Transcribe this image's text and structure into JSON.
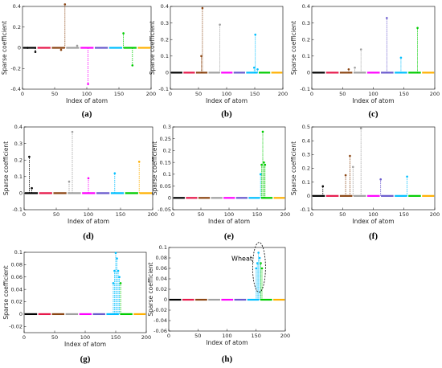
{
  "figure": {
    "panels": [
      {
        "caption": "(a)",
        "xlabel": "Index of atom",
        "ylabel": "Sparse coefficient",
        "xticks": [
          "0",
          "50",
          "100",
          "150",
          "200"
        ],
        "yticks": [
          "-0.4",
          "-0.2",
          "0",
          "0.2",
          "0.4"
        ],
        "xlim": [
          0,
          200
        ],
        "ylim": [
          -0.4,
          0.4
        ]
      },
      {
        "caption": "(b)",
        "xlabel": "Index of atom",
        "ylabel": "Sparse coefficient",
        "xticks": [
          "0",
          "50",
          "100",
          "150",
          "200"
        ],
        "yticks": [
          "-0.1",
          "0",
          "0.1",
          "0.2",
          "0.3",
          "0.4"
        ],
        "xlim": [
          0,
          200
        ],
        "ylim": [
          -0.1,
          0.4
        ]
      },
      {
        "caption": "(c)",
        "xlabel": "Index of atom",
        "ylabel": "Sparse coefficient",
        "xticks": [
          "0",
          "50",
          "100",
          "150",
          "200"
        ],
        "yticks": [
          "-0.1",
          "0",
          "0.1",
          "0.2",
          "0.3",
          "0.4"
        ],
        "xlim": [
          0,
          200
        ],
        "ylim": [
          -0.1,
          0.4
        ]
      },
      {
        "caption": "(d)",
        "xlabel": "Index of atom",
        "ylabel": "Sparse coefficient",
        "xticks": [
          "0",
          "50",
          "100",
          "150",
          "200"
        ],
        "yticks": [
          "-0.1",
          "0",
          "0.1",
          "0.2",
          "0.3",
          "0.4"
        ],
        "xlim": [
          0,
          200
        ],
        "ylim": [
          -0.1,
          0.4
        ]
      },
      {
        "caption": "(e)",
        "xlabel": "Index of atom",
        "ylabel": "Sparse coefficient",
        "xticks": [
          "0",
          "50",
          "100",
          "150",
          "200"
        ],
        "yticks": [
          "-0.05",
          "0",
          "0.05",
          "0.1",
          "0.15",
          "0.2",
          "0.25",
          "0.3"
        ],
        "xlim": [
          0,
          200
        ],
        "ylim": [
          -0.05,
          0.3
        ]
      },
      {
        "caption": "(f)",
        "xlabel": "Index of atom",
        "ylabel": "Sparse coefficient",
        "xticks": [
          "0",
          "50",
          "100",
          "150",
          "200"
        ],
        "yticks": [
          "-0.1",
          "0",
          "0.1",
          "0.2",
          "0.3",
          "0.4",
          "0.5"
        ],
        "xlim": [
          0,
          200
        ],
        "ylim": [
          -0.1,
          0.5
        ]
      },
      {
        "caption": "(g)",
        "xlabel": "Index of atom",
        "ylabel": "Sparse coefficient",
        "xticks": [
          "0",
          "50",
          "100",
          "150",
          "200"
        ],
        "yticks": [
          "-0.02",
          "0",
          "0.02",
          "0.04",
          "0.06",
          "0.08",
          "0.1"
        ],
        "xlim": [
          0,
          200
        ],
        "ylim": [
          -0.03,
          0.1
        ]
      },
      {
        "caption": "(h)",
        "xlabel": "Index of atom",
        "ylabel": "Sparse coefficient",
        "xticks": [
          "0",
          "50",
          "100",
          "150",
          "200"
        ],
        "yticks": [
          "-0.06",
          "-0.04",
          "-0.02",
          "0",
          "0.02",
          "0.04",
          "0.06",
          "0.08",
          "0.1"
        ],
        "xlim": [
          0,
          200
        ],
        "ylim": [
          -0.06,
          0.1
        ],
        "annotation": "Wheat"
      }
    ]
  },
  "chart_data": [
    {
      "type": "scatter",
      "panel": "(a)",
      "marker": "stem",
      "xlim": [
        0,
        200
      ],
      "ylim": [
        -0.4,
        0.4
      ],
      "series": [
        {
          "x": [
            8,
            66,
            102,
            157,
            171,
            20,
            60,
            85
          ],
          "y": [
            0.0,
            0.42,
            -0.35,
            0.14,
            -0.17,
            -0.04,
            -0.02,
            0.02
          ]
        }
      ],
      "class_colors": [
        "#000000",
        "#e6194b",
        "#8b4513",
        "#b0b0b0",
        "#ff00ff",
        "#6a5acd",
        "#00bfff",
        "#00cc00",
        "#ffb000"
      ]
    },
    {
      "type": "scatter",
      "panel": "(b)",
      "marker": "stem",
      "xlim": [
        0,
        200
      ],
      "ylim": [
        -0.1,
        0.4
      ],
      "series": [
        {
          "x": [
            55,
            57,
            88,
            151,
            149,
            155
          ],
          "y": [
            0.1,
            0.39,
            0.29,
            0.23,
            0.03,
            0.02
          ]
        }
      ]
    },
    {
      "type": "scatter",
      "panel": "(c)",
      "marker": "stem",
      "xlim": [
        0,
        200
      ],
      "ylim": [
        -0.1,
        0.4
      ],
      "series": [
        {
          "x": [
            80,
            122,
            145,
            172,
            60,
            70
          ],
          "y": [
            0.14,
            0.33,
            0.09,
            0.27,
            0.02,
            0.03
          ]
        }
      ]
    },
    {
      "type": "scatter",
      "panel": "(d)",
      "marker": "stem",
      "xlim": [
        0,
        200
      ],
      "ylim": [
        -0.1,
        0.4
      ],
      "series": [
        {
          "x": [
            8,
            75,
            100,
            141,
            179,
            12,
            70
          ],
          "y": [
            0.22,
            0.37,
            0.09,
            0.12,
            0.19,
            0.03,
            0.07
          ]
        }
      ]
    },
    {
      "type": "scatter",
      "panel": "(e)",
      "marker": "stem",
      "xlim": [
        0,
        200
      ],
      "ylim": [
        -0.05,
        0.3
      ],
      "series": [
        {
          "x": [
            156,
            158,
            160,
            162,
            164
          ],
          "y": [
            0.1,
            0.14,
            0.28,
            0.15,
            0.14
          ]
        }
      ]
    },
    {
      "type": "scatter",
      "panel": "(f)",
      "marker": "stem",
      "xlim": [
        0,
        200
      ],
      "ylim": [
        -0.1,
        0.5
      ],
      "series": [
        {
          "x": [
            18,
            55,
            62,
            67,
            80,
            112,
            155
          ],
          "y": [
            0.07,
            0.15,
            0.29,
            0.21,
            0.49,
            0.12,
            0.14
          ]
        }
      ]
    },
    {
      "type": "scatter",
      "panel": "(g)",
      "marker": "stem",
      "xlim": [
        0,
        200
      ],
      "ylim": [
        -0.03,
        0.1
      ],
      "series": [
        {
          "x": [
            146,
            148,
            150,
            152,
            154,
            156,
            158
          ],
          "y": [
            0.05,
            0.07,
            0.099,
            0.09,
            0.07,
            0.06,
            0.05
          ]
        }
      ]
    },
    {
      "type": "scatter",
      "panel": "(h)",
      "marker": "stem",
      "xlim": [
        0,
        200
      ],
      "ylim": [
        -0.06,
        0.1
      ],
      "series": [
        {
          "x": [
            150,
            152,
            154,
            156,
            158,
            160
          ],
          "y": [
            0.06,
            0.07,
            0.09,
            0.08,
            0.07,
            0.06
          ]
        }
      ]
    }
  ]
}
